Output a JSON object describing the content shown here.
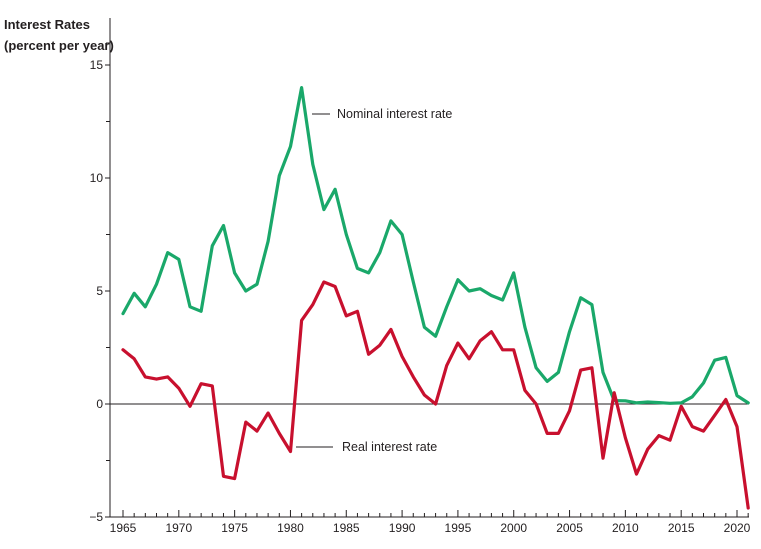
{
  "chart_data": {
    "type": "line",
    "ylabel": [
      "Interest Rates",
      "(percent per year)"
    ],
    "ylim": [
      -5,
      15
    ],
    "yticks": [
      15,
      10,
      5,
      0,
      -5
    ],
    "ytick_labels": [
      "15",
      "10",
      "5",
      "0",
      "−5"
    ],
    "xlim": [
      1964.5,
      2021.5
    ],
    "xticks": [
      1965,
      1970,
      1975,
      1980,
      1985,
      1990,
      1995,
      2000,
      2005,
      2010,
      2015,
      2020
    ],
    "xtick_labels": [
      "1965",
      "1970",
      "1975",
      "1980",
      "1985",
      "1990",
      "1995",
      "2000",
      "2005",
      "2010",
      "2015",
      "2020"
    ],
    "zero_line": true,
    "grid": false,
    "x": [
      1965,
      1966,
      1967,
      1968,
      1969,
      1970,
      1971,
      1972,
      1973,
      1974,
      1975,
      1976,
      1977,
      1978,
      1979,
      1980,
      1981,
      1982,
      1983,
      1984,
      1985,
      1986,
      1987,
      1988,
      1989,
      1990,
      1991,
      1992,
      1993,
      1994,
      1995,
      1996,
      1997,
      1998,
      1999,
      2000,
      2001,
      2002,
      2003,
      2004,
      2005,
      2006,
      2007,
      2008,
      2009,
      2010,
      2011,
      2012,
      2013,
      2014,
      2015,
      2016,
      2017,
      2018,
      2019,
      2020,
      2021
    ],
    "series": [
      {
        "name": "Nominal interest rate",
        "color": "#1aa86a",
        "values": [
          4.0,
          4.9,
          4.3,
          5.3,
          6.7,
          6.4,
          4.3,
          4.1,
          7.0,
          7.9,
          5.8,
          5.0,
          5.3,
          7.2,
          10.1,
          11.4,
          14.0,
          10.6,
          8.6,
          9.5,
          7.5,
          6.0,
          5.8,
          6.7,
          8.1,
          7.5,
          5.4,
          3.4,
          3.0,
          4.3,
          5.5,
          5.0,
          5.1,
          4.8,
          4.6,
          5.8,
          3.4,
          1.6,
          1.0,
          1.4,
          3.2,
          4.7,
          4.4,
          1.4,
          0.15,
          0.14,
          0.05,
          0.09,
          0.06,
          0.03,
          0.05,
          0.32,
          0.93,
          1.94,
          2.06,
          0.37,
          0.05
        ]
      },
      {
        "name": "Real interest rate",
        "color": "#c8102e",
        "values": [
          2.4,
          2.0,
          1.2,
          1.1,
          1.2,
          0.7,
          -0.1,
          0.9,
          0.8,
          -3.2,
          -3.3,
          -0.8,
          -1.2,
          -0.4,
          -1.3,
          -2.1,
          3.7,
          4.4,
          5.4,
          5.2,
          3.9,
          4.1,
          2.2,
          2.6,
          3.3,
          2.1,
          1.2,
          0.4,
          0.0,
          1.7,
          2.7,
          2.0,
          2.8,
          3.2,
          2.4,
          2.4,
          0.6,
          0.0,
          -1.3,
          -1.3,
          -0.3,
          1.5,
          1.6,
          -2.4,
          0.5,
          -1.5,
          -3.1,
          -2.0,
          -1.4,
          -1.6,
          -0.1,
          -1.0,
          -1.2,
          -0.5,
          0.2,
          -1.0,
          -4.6
        ]
      }
    ],
    "annotations": [
      {
        "text": "Nominal interest rate",
        "series": 0
      },
      {
        "text": "Real interest rate",
        "series": 1
      }
    ]
  }
}
